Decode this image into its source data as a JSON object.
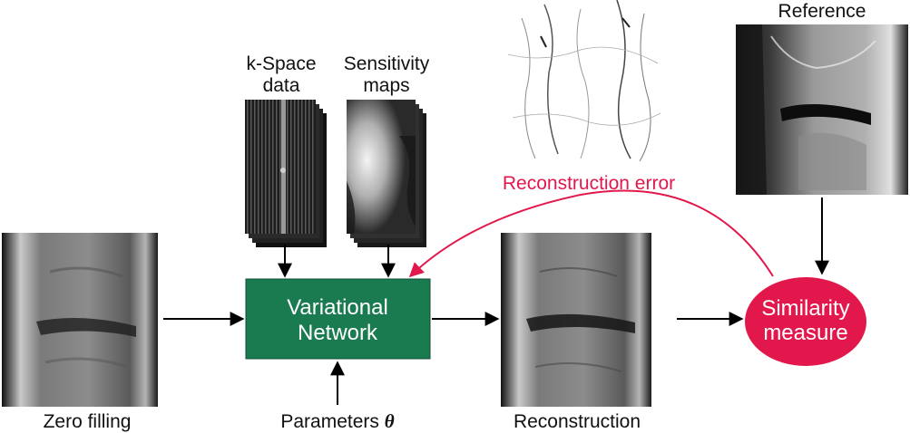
{
  "labels": {
    "zero_filling": "Zero filling",
    "kspace_line1": "k-Space",
    "kspace_line2": "data",
    "sensitivity_line1": "Sensitivity",
    "sensitivity_line2": "maps",
    "network_line1": "Variational",
    "network_line2": "Network",
    "parameters": "Parameters",
    "theta": "θ",
    "reconstruction": "Reconstruction",
    "reconstruction_error": "Reconstruction error",
    "reference": "Reference",
    "similarity_line1": "Similarity",
    "similarity_line2": "measure"
  },
  "colors": {
    "network_box": "#1a7a50",
    "similarity_ellipse": "#e2184c",
    "error_arrow": "#e2184c",
    "arrows": "#000000"
  }
}
